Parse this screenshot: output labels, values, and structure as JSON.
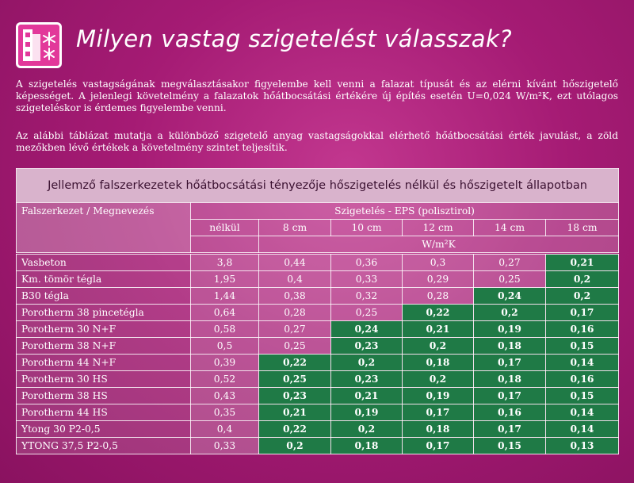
{
  "header": {
    "title": "Milyen vastag szigetelést válasszak?"
  },
  "paragraphs": [
    "A szigetelés vastagságának megválasztásakor figyelembe kell venni a falazat típusát és az elérni kívánt hőszigetelő képességet. A jelenlegi követelmény a falazatok hőátbocsátási értékére új építés esetén U=0,024 W/m²K, ezt utólagos szigeteléskor is érdemes figyelembe venni.",
    "Az alábbi táblázat mutatja a különböző szigetelő anyag vastagságokkal elérhető hőátbocsátási érték javulást, a zöld mezőkben lévő értékek a követelmény szintet teljesítik."
  ],
  "table": {
    "caption": "Jellemző falszerkezetek hőátbocsátási tényezője hőszigetelés nélkül és hőszigetelt állapotban",
    "first_header": "Falszerkezet / Megnevezés",
    "group_header": "Szigetelés - EPS (polisztirol)",
    "columns": [
      "nélkül",
      "8 cm",
      "10 cm",
      "12 cm",
      "14 cm",
      "18 cm"
    ],
    "unit": "W/m²K",
    "highlight_color": "#1f7a46",
    "rows": [
      {
        "name": "Vasbeton",
        "cells": [
          "3,8",
          "0,44",
          "0,36",
          "0,3",
          "0,27",
          "0,21"
        ],
        "green": [
          false,
          false,
          false,
          false,
          false,
          true
        ]
      },
      {
        "name": "Km. tömör tégla",
        "cells": [
          "1,95",
          "0,4",
          "0,33",
          "0,29",
          "0,25",
          "0,2"
        ],
        "green": [
          false,
          false,
          false,
          false,
          false,
          true
        ]
      },
      {
        "name": "B30 tégla",
        "cells": [
          "1,44",
          "0,38",
          "0,32",
          "0,28",
          "0,24",
          "0,2"
        ],
        "green": [
          false,
          false,
          false,
          false,
          true,
          true
        ]
      },
      {
        "name": "Porotherm 38 pincetégla",
        "cells": [
          "0,64",
          "0,28",
          "0,25",
          "0,22",
          "0,2",
          "0,17"
        ],
        "green": [
          false,
          false,
          false,
          true,
          true,
          true
        ]
      },
      {
        "name": "Porotherm 30 N+F",
        "cells": [
          "0,58",
          "0,27",
          "0,24",
          "0,21",
          "0,19",
          "0,16"
        ],
        "green": [
          false,
          false,
          true,
          true,
          true,
          true
        ]
      },
      {
        "name": "Porotherm 38 N+F",
        "cells": [
          "0,5",
          "0,25",
          "0,23",
          "0,2",
          "0,18",
          "0,15"
        ],
        "green": [
          false,
          false,
          true,
          true,
          true,
          true
        ]
      },
      {
        "name": "Porotherm 44 N+F",
        "cells": [
          "0,39",
          "0,22",
          "0,2",
          "0,18",
          "0,17",
          "0,14"
        ],
        "green": [
          false,
          true,
          true,
          true,
          true,
          true
        ]
      },
      {
        "name": "Porotherm 30 HS",
        "cells": [
          "0,52",
          "0,25",
          "0,23",
          "0,2",
          "0,18",
          "0,16"
        ],
        "green": [
          false,
          true,
          true,
          true,
          true,
          true
        ]
      },
      {
        "name": "Porotherm 38 HS",
        "cells": [
          "0,43",
          "0,23",
          "0,21",
          "0,19",
          "0,17",
          "0,15"
        ],
        "green": [
          false,
          true,
          true,
          true,
          true,
          true
        ]
      },
      {
        "name": "Porotherm 44 HS",
        "cells": [
          "0,35",
          "0,21",
          "0,19",
          "0,17",
          "0,16",
          "0,14"
        ],
        "green": [
          false,
          true,
          true,
          true,
          true,
          true
        ]
      },
      {
        "name": "Ytong 30 P2-0,5",
        "cells": [
          "0,4",
          "0,22",
          "0,2",
          "0,18",
          "0,17",
          "0,14"
        ],
        "green": [
          false,
          true,
          true,
          true,
          true,
          true
        ]
      },
      {
        "name": "YTONG 37,5 P2-0,5",
        "cells": [
          "0,33",
          "0,2",
          "0,18",
          "0,17",
          "0,15",
          "0,13"
        ],
        "green": [
          false,
          true,
          true,
          true,
          true,
          true
        ]
      }
    ]
  }
}
